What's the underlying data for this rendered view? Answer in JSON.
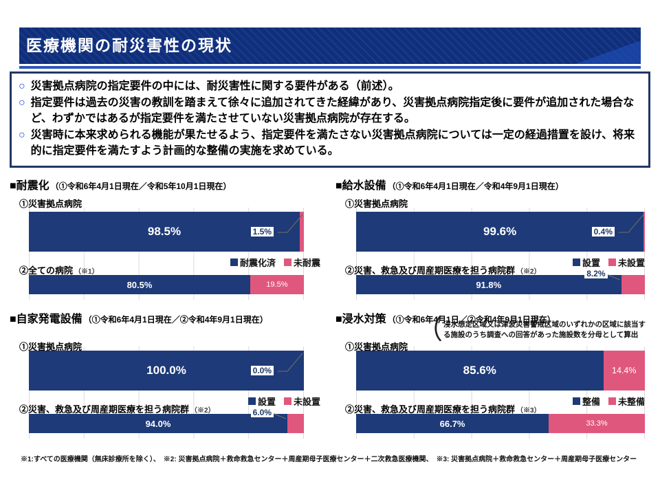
{
  "slide": {
    "title": "医療機関の耐災害性の現状",
    "bullets": [
      "災害拠点病院の指定要件の中には、耐災害性に関する要件がある（前述）。",
      "指定要件は過去の災害の教訓を踏まえて徐々に追加されてきた経緯があり、災害拠点病院指定後に要件が追加された場合など、わずかではあるが指定要件を満たさせていない災害拠点病院が存在する。",
      "災害時に本来求められる機能が果たせるよう、指定要件を満たさない災害拠点病院については一定の経過措置を設け、将来的に指定要件を満たすよう計画的な整備の実施を求めている。"
    ],
    "footnote": "※1:すべての医療機関（無床診療所を除く）、　※2: 災害拠点病院＋救命救急センター＋周産期母子医療センター＋二次救急医療機関、　※3: 災害拠点病院＋救命救急センター＋周産期母子医療センター"
  },
  "colors": {
    "bar_blue": "#1e3a78",
    "bar_pink": "#e0577d",
    "header_blue": "#0f2f7d",
    "border_navy": "#1f3864",
    "gridline": "#d9d9d9"
  },
  "chart_data": [
    {
      "type": "bar",
      "orientation": "horizontal-stacked",
      "title": "■耐震化",
      "subtitle": "（①令和6年4月1日現在／令和5年10月1日現在）",
      "legend": [
        "耐震化済",
        "未耐震"
      ],
      "legend_position": "right-middle",
      "xlim": [
        0,
        100
      ],
      "grid": true,
      "rows": [
        {
          "label": "①災害拠点病院",
          "note": "",
          "values": [
            98.5,
            1.5
          ],
          "labels": [
            "98.5%",
            "1.5%"
          ],
          "minor": "callout-end"
        },
        {
          "label": "②全ての病院",
          "note": "（※1）",
          "values": [
            80.5,
            19.5
          ],
          "labels": [
            "80.5%",
            "19.5%"
          ],
          "minor": "inside"
        }
      ]
    },
    {
      "type": "bar",
      "orientation": "horizontal-stacked",
      "title": "■給水設備",
      "subtitle": "（①令和6年4月1日現在／令和4年9月1日現在）",
      "legend": [
        "設置",
        "未設置"
      ],
      "legend_position": "right-middle",
      "xlim": [
        0,
        100
      ],
      "grid": true,
      "rows": [
        {
          "label": "①災害拠点病院",
          "note": "",
          "values": [
            99.6,
            0.4
          ],
          "labels": [
            "99.6%",
            "0.4%"
          ],
          "minor": "callout-end"
        },
        {
          "label": "②災害、救急及び周産期医療を担う病院群",
          "note": "（※2）",
          "values": [
            91.8,
            8.2
          ],
          "labels": [
            "91.8%",
            "8.2%"
          ],
          "minor": "callout-top"
        }
      ]
    },
    {
      "type": "bar",
      "orientation": "horizontal-stacked",
      "title": "■自家発電設備",
      "subtitle": "（①令和6年4月1日現在／②令和4年9月1日現在）",
      "legend": [
        "設置",
        "未設置"
      ],
      "legend_position": "right-middle",
      "xlim": [
        0,
        100
      ],
      "grid": true,
      "rows": [
        {
          "label": "①災害拠点病院",
          "note": "",
          "values": [
            100.0,
            0.0
          ],
          "labels": [
            "100.0%",
            "0.0%"
          ],
          "minor": "callout-end"
        },
        {
          "label": "②災害、救急及び周産期医療を担う病院群",
          "note": "（※2）",
          "values": [
            94.0,
            6.0
          ],
          "labels": [
            "94.0%",
            "6.0%"
          ],
          "minor": "callout-top"
        }
      ]
    },
    {
      "type": "bar",
      "orientation": "horizontal-stacked",
      "title": "■浸水対策",
      "subtitle": "（①令和6年4月1日／②令和4年9月1日現在）",
      "annotation": "浸水想定区域又は津波災害警戒区域のいずれかの区域に該当する施設のうち調査への回答があった施設数を分母として算出",
      "legend": [
        "整備",
        "未整備"
      ],
      "legend_position": "right-middle",
      "xlim": [
        0,
        100
      ],
      "grid": true,
      "rows": [
        {
          "label": "①災害拠点病院",
          "note": "",
          "values": [
            85.6,
            14.4
          ],
          "labels": [
            "85.6%",
            "14.4%"
          ],
          "minor": "inside"
        },
        {
          "label": "②災害、救急及び周産期医療を担う病院群",
          "note": "（※3）",
          "values": [
            66.7,
            33.3
          ],
          "labels": [
            "66.7%",
            "33.3%"
          ],
          "minor": "inside"
        }
      ]
    }
  ]
}
